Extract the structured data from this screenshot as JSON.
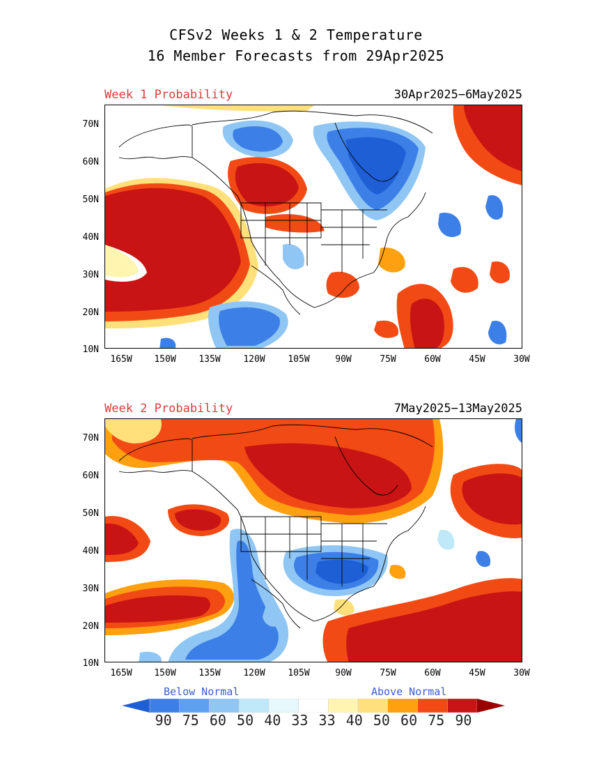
{
  "title_line1": "CFSv2 Weeks 1 & 2 Temperature",
  "title_line2": "16 Member Forecasts from 29Apr2025",
  "panels": [
    {
      "label": "Week 1 Probability",
      "dates": "30Apr2025−6May2025"
    },
    {
      "label": "Week 2 Probability",
      "dates": "7May2025−13May2025"
    }
  ],
  "lat_ticks": [
    "70N",
    "60N",
    "50N",
    "40N",
    "30N",
    "20N",
    "10N"
  ],
  "lon_ticks": [
    "165W",
    "150W",
    "135W",
    "120W",
    "105W",
    "90W",
    "75W",
    "60W",
    "45W",
    "30W"
  ],
  "legend": {
    "below_label": "Below Normal",
    "above_label": "Above Normal",
    "values": [
      "90",
      "75",
      "60",
      "50",
      "40",
      "33",
      "33",
      "40",
      "50",
      "60",
      "75",
      "90"
    ],
    "colors": [
      "#1f5fd6",
      "#3c7fe6",
      "#5ea0f0",
      "#8fc6f4",
      "#bfe8f8",
      "#e6f8fb",
      "#ffffff",
      "#fff5b0",
      "#ffe07a",
      "#ffa010",
      "#f24a14",
      "#c81414",
      "#9a0000"
    ]
  }
}
